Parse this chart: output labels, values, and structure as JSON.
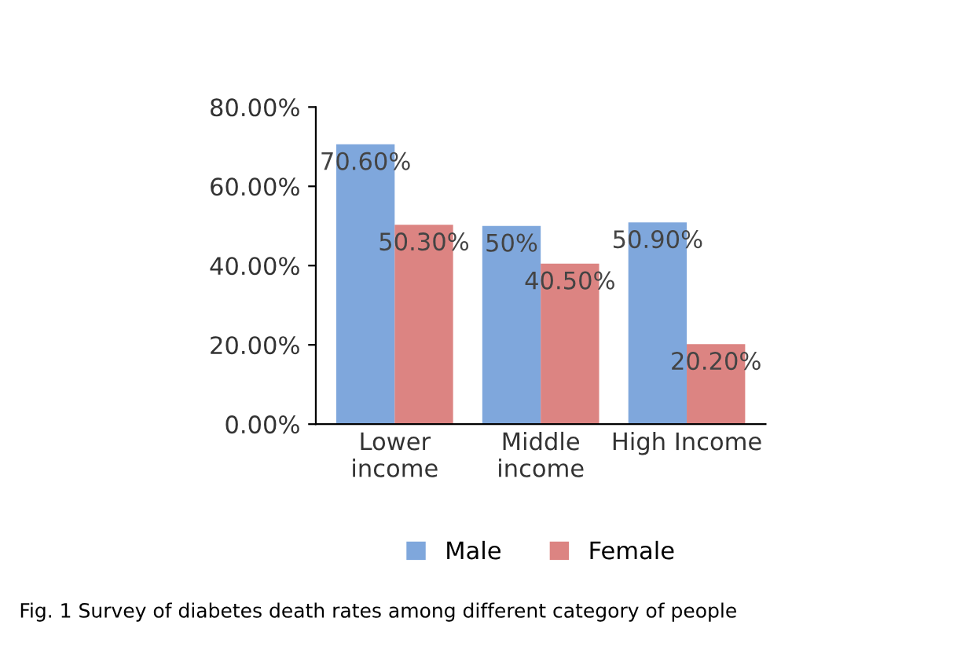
{
  "chart_data": {
    "type": "bar",
    "categories": [
      "Lower\nincome",
      "Middle\nincome",
      "High Income"
    ],
    "series": [
      {
        "name": "Male",
        "color": "#7fa7dc",
        "values": [
          70.6,
          50,
          50.9
        ],
        "value_labels": [
          "70.60%",
          "50%",
          "50.90%"
        ]
      },
      {
        "name": "Female",
        "color": "#dc8482",
        "values": [
          50.3,
          40.5,
          20.2
        ],
        "value_labels": [
          "50.30%",
          "40.50%",
          "20.20%"
        ]
      }
    ],
    "ylim": [
      0,
      80
    ],
    "yticks": [
      {
        "value": 0,
        "label": "0.00%"
      },
      {
        "value": 20,
        "label": "20.00%"
      },
      {
        "value": 40,
        "label": "40.00%"
      },
      {
        "value": 60,
        "label": "60.00%"
      },
      {
        "value": 80,
        "label": "80.00%"
      }
    ],
    "grid": false,
    "legend": "bottom",
    "annotations": [
      "Fig. 1 Survey of diabetes death rates among different category of people"
    ]
  }
}
